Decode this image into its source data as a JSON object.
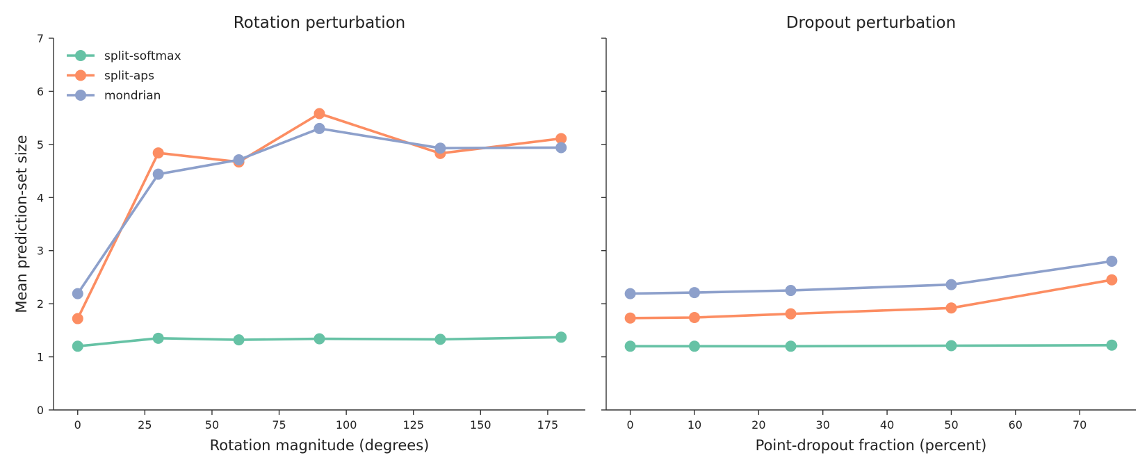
{
  "chart_data": [
    {
      "type": "line",
      "title": "Rotation perturbation",
      "xlabel": "Rotation magnitude (degrees)",
      "ylabel": "Mean prediction-set size",
      "xlim": [
        -9,
        189
      ],
      "ylim": [
        0,
        7
      ],
      "xticks": [
        "0",
        "25",
        "50",
        "75",
        "100",
        "125",
        "150",
        "175"
      ],
      "yticks": [
        "0",
        "1",
        "2",
        "3",
        "4",
        "5",
        "6",
        "7"
      ],
      "x": [
        0,
        30,
        60,
        90,
        135,
        180
      ],
      "grid": false,
      "legend": "top-left",
      "series": [
        {
          "name": "split-softmax",
          "color": "#66c2a5",
          "values": [
            1.2,
            1.35,
            1.32,
            1.34,
            1.33,
            1.37
          ]
        },
        {
          "name": "split-aps",
          "color": "#fc8d62",
          "values": [
            1.72,
            4.84,
            4.67,
            5.58,
            4.83,
            5.11
          ]
        },
        {
          "name": "mondrian",
          "color": "#8da0cb",
          "values": [
            2.19,
            4.44,
            4.71,
            5.3,
            4.93,
            4.94
          ]
        }
      ]
    },
    {
      "type": "line",
      "title": "Dropout perturbation",
      "xlabel": "Point-dropout fraction (percent)",
      "ylabel": "",
      "xlim": [
        -3.75,
        78.75
      ],
      "ylim": [
        0,
        7
      ],
      "xticks": [
        "0",
        "10",
        "20",
        "30",
        "40",
        "50",
        "60",
        "70"
      ],
      "yticks": [],
      "x": [
        0,
        10,
        25,
        50,
        75
      ],
      "grid": false,
      "legend": "none",
      "series": [
        {
          "name": "split-softmax",
          "color": "#66c2a5",
          "values": [
            1.2,
            1.2,
            1.2,
            1.21,
            1.22
          ]
        },
        {
          "name": "split-aps",
          "color": "#fc8d62",
          "values": [
            1.73,
            1.74,
            1.81,
            1.92,
            2.45
          ]
        },
        {
          "name": "mondrian",
          "color": "#8da0cb",
          "values": [
            2.19,
            2.21,
            2.25,
            2.36,
            2.8
          ]
        }
      ]
    }
  ]
}
